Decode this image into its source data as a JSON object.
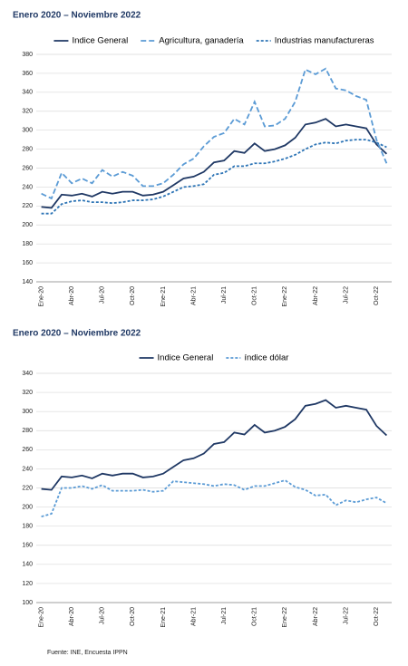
{
  "chart_data": [
    {
      "type": "line",
      "title": "Enero 2020 – Noviembre 2022",
      "categories": [
        "Ene-20",
        null,
        null,
        "Abr-20",
        null,
        null,
        "Jul-20",
        null,
        null,
        "Oct-20",
        null,
        null,
        "Ene-21",
        null,
        null,
        "Abr-21",
        null,
        null,
        "Jul-21",
        null,
        null,
        "Oct-21",
        null,
        null,
        "Ene-22",
        null,
        null,
        "Abr-22",
        null,
        null,
        "Jul-22",
        null,
        null,
        "Oct-22",
        null
      ],
      "ylim": [
        140,
        380
      ],
      "yticks": [
        140,
        160,
        180,
        200,
        220,
        240,
        260,
        280,
        300,
        320,
        340,
        360,
        380
      ],
      "grid": true,
      "legend": "top",
      "series": [
        {
          "name": "Indice General",
          "color": "#1f3864",
          "dash": "solid",
          "values": [
            219,
            218,
            232,
            231,
            233,
            230,
            235,
            233,
            235,
            235,
            231,
            232,
            235,
            242,
            249,
            251,
            256,
            266,
            268,
            278,
            276,
            286,
            278,
            280,
            284,
            292,
            306,
            308,
            312,
            304,
            306,
            304,
            302,
            285,
            275
          ]
        },
        {
          "name": "Agricultura, ganadería",
          "color": "#5b9bd5",
          "dash": "long",
          "values": [
            233,
            228,
            255,
            244,
            249,
            244,
            258,
            251,
            256,
            252,
            241,
            241,
            244,
            253,
            264,
            270,
            283,
            293,
            297,
            312,
            306,
            330,
            304,
            305,
            312,
            330,
            364,
            359,
            365,
            344,
            342,
            336,
            332,
            290,
            265
          ]
        },
        {
          "name": "Industrias manufactureras",
          "color": "#2e75b6",
          "dash": "short",
          "values": [
            212,
            212,
            222,
            225,
            226,
            224,
            224,
            223,
            224,
            226,
            226,
            227,
            230,
            235,
            240,
            241,
            243,
            253,
            255,
            262,
            262,
            265,
            265,
            267,
            270,
            274,
            280,
            285,
            287,
            286,
            289,
            290,
            290,
            287,
            282
          ]
        }
      ]
    },
    {
      "type": "line",
      "title": "Enero 2020 – Noviembre 2022",
      "categories": [
        "Ene-20",
        null,
        null,
        "Abr-20",
        null,
        null,
        "Jul-20",
        null,
        null,
        "Oct-20",
        null,
        null,
        "Ene-21",
        null,
        null,
        "Abr-21",
        null,
        null,
        "Jul-21",
        null,
        null,
        "Oct-21",
        null,
        null,
        "Ene-22",
        null,
        null,
        "Abr-22",
        null,
        null,
        "Jul-22",
        null,
        null,
        "Oct-22",
        null
      ],
      "ylim": [
        100,
        340
      ],
      "yticks": [
        100,
        120,
        140,
        160,
        180,
        200,
        220,
        240,
        260,
        280,
        300,
        320,
        340
      ],
      "grid": true,
      "legend": "top",
      "series": [
        {
          "name": "Indice General",
          "color": "#1f3864",
          "dash": "solid",
          "values": [
            219,
            218,
            232,
            231,
            233,
            230,
            235,
            233,
            235,
            235,
            231,
            232,
            235,
            242,
            249,
            251,
            256,
            266,
            268,
            278,
            276,
            286,
            278,
            280,
            284,
            292,
            306,
            308,
            312,
            304,
            306,
            304,
            302,
            285,
            275
          ]
        },
        {
          "name": "índice dólar",
          "color": "#5b9bd5",
          "dash": "short",
          "values": [
            190,
            193,
            220,
            220,
            222,
            219,
            223,
            217,
            217,
            217,
            218,
            216,
            217,
            227,
            226,
            225,
            224,
            222,
            224,
            223,
            218,
            222,
            222,
            225,
            228,
            221,
            218,
            212,
            213,
            202,
            207,
            205,
            208,
            210,
            204
          ]
        }
      ]
    }
  ],
  "source": "Fuente: INE, Encuesta IPPN"
}
